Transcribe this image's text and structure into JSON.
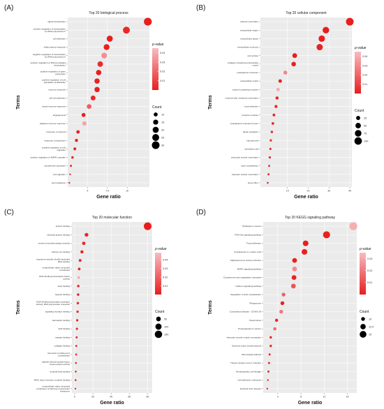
{
  "chart_data": [
    {
      "type": "scatter",
      "panel_label": "(A)",
      "title": "Top 20 biological process",
      "xlabel": "Gene ratio",
      "ylabel": "Terms",
      "xlim": [
        2.5,
        12.8
      ],
      "xticks": [
        5.0,
        7.5,
        10.0
      ],
      "color_legend": {
        "title": "p-value",
        "ticks": [
          0.04,
          0.03,
          0.02,
          0.01
        ],
        "range": [
          0.0,
          0.045
        ]
      },
      "size_legend": {
        "title": "Count",
        "values": [
          10,
          15,
          20,
          25,
          30
        ],
        "range": [
          3,
          31
        ]
      },
      "points": [
        {
          "term": "signal transduction",
          "x": 12.6,
          "count": 31,
          "p": 0.0001
        },
        {
          "term": "positive regulation of transcription by RNA polymerase II",
          "x": 9.9,
          "count": 25,
          "p": 0.003
        },
        {
          "term": "cell adhesion",
          "x": 7.8,
          "count": 20,
          "p": 0.0001
        },
        {
          "term": "inflammatory response",
          "x": 7.4,
          "count": 19,
          "p": 0.0005
        },
        {
          "term": "negative regulation of transcription by RNA polymerase II",
          "x": 7.1,
          "count": 18,
          "p": 0.032
        },
        {
          "term": "positive regulation of DNA-templated transcription",
          "x": 6.6,
          "count": 17,
          "p": 0.004
        },
        {
          "term": "positive regulation of gene expression",
          "x": 6.4,
          "count": 16,
          "p": 0.0003
        },
        {
          "term": "positive regulation of cell population proliferation",
          "x": 6.2,
          "count": 16,
          "p": 0.001
        },
        {
          "term": "immune response",
          "x": 6.2,
          "count": 16,
          "p": 0.0002
        },
        {
          "term": "cell-cell adhesion",
          "x": 5.7,
          "count": 14,
          "p": 0.002
        },
        {
          "term": "innate immune response",
          "x": 5.2,
          "count": 13,
          "p": 0.018
        },
        {
          "term": "angiogenesis",
          "x": 4.5,
          "count": 10,
          "p": 0.0004
        },
        {
          "term": "adaptive immune response",
          "x": 4.6,
          "count": 11,
          "p": 0.038
        },
        {
          "term": "response to hypoxia",
          "x": 3.8,
          "count": 8,
          "p": 0.0002
        },
        {
          "term": "response to bacterium",
          "x": 3.6,
          "count": 7,
          "p": 0.001
        },
        {
          "term": "positive regulation of cell migration",
          "x": 3.4,
          "count": 6,
          "p": 0.0015
        },
        {
          "term": "positive regulation of MAPK cascade",
          "x": 3.1,
          "count": 5,
          "p": 0.002
        },
        {
          "term": "complement activation",
          "x": 2.9,
          "count": 4,
          "p": 0.003
        },
        {
          "term": "cell migration",
          "x": 2.8,
          "count": 3,
          "p": 0.004
        },
        {
          "term": "axon guidance",
          "x": 2.7,
          "count": 3,
          "p": 0.002
        }
      ]
    },
    {
      "type": "scatter",
      "panel_label": "(B)",
      "title": "Top 20 cellular component",
      "xlabel": "Gene ratio",
      "ylabel": "Terms",
      "xlim": [
        -3,
        41
      ],
      "xticks": [
        10,
        20,
        30,
        40
      ],
      "color_legend": {
        "title": "p-value",
        "ticks": [
          0.04,
          0.03,
          0.02,
          0.01
        ],
        "range": [
          0.0,
          0.045
        ]
      },
      "size_legend": {
        "title": "Count",
        "values": [
          25,
          50,
          75,
          100
        ],
        "range": [
          2,
          110
        ]
      },
      "points": [
        {
          "term": "plasma membrane",
          "x": 40.0,
          "count": 105,
          "p": 0.0001
        },
        {
          "term": "extracellular region",
          "x": 28.5,
          "count": 75,
          "p": 0.0003
        },
        {
          "term": "extracellular space",
          "x": 26.5,
          "count": 70,
          "p": 0.0005
        },
        {
          "term": "extracellular exosome",
          "x": 25.5,
          "count": 68,
          "p": 0.001
        },
        {
          "term": "cell surface",
          "x": 13.5,
          "count": 35,
          "p": 0.0002
        },
        {
          "term": "collagen-containing extracellular matrix",
          "x": 13.0,
          "count": 33,
          "p": 0.0008
        },
        {
          "term": "endoplasmic reticulum",
          "x": 9.0,
          "count": 23,
          "p": 0.03
        },
        {
          "term": "extracellular matrix",
          "x": 6.5,
          "count": 17,
          "p": 0.001
        },
        {
          "term": "protein-containing complex",
          "x": 5.5,
          "count": 15,
          "p": 0.04
        },
        {
          "term": "external side of plasma membrane",
          "x": 5.0,
          "count": 13,
          "p": 0.002
        },
        {
          "term": "focal adhesion",
          "x": 4.5,
          "count": 12,
          "p": 0.004
        },
        {
          "term": "receptor complex",
          "x": 3.5,
          "count": 9,
          "p": 0.003
        },
        {
          "term": "endoplasmic reticulum lumen",
          "x": 3.0,
          "count": 8,
          "p": 0.002
        },
        {
          "term": "basal cytoplasm",
          "x": 2.5,
          "count": 7,
          "p": 0.005
        },
        {
          "term": "sarcolemma",
          "x": 2.0,
          "count": 6,
          "p": 0.006
        },
        {
          "term": "membrane raft",
          "x": 1.8,
          "count": 5,
          "p": 0.004
        },
        {
          "term": "endocytic vesicle membrane",
          "x": 1.5,
          "count": 5,
          "p": 0.003
        },
        {
          "term": "actin cytoskeleton",
          "x": 1.2,
          "count": 4,
          "p": 0.007
        },
        {
          "term": "transport vesicle membrane",
          "x": 0.9,
          "count": 4,
          "p": 0.002
        },
        {
          "term": "stress fiber",
          "x": 0.5,
          "count": 3,
          "p": 0.003
        }
      ]
    },
    {
      "type": "scatter",
      "panel_label": "(C)",
      "title": "Top 20 molecular function",
      "xlabel": "Gene ratio",
      "ylabel": "Terms",
      "xlim": [
        -3,
        85
      ],
      "xticks": [
        0,
        20,
        40,
        60,
        80
      ],
      "color_legend": {
        "title": "p-value",
        "ticks": [
          0.04,
          0.03,
          0.02,
          0.01
        ],
        "range": [
          0.0,
          0.048
        ]
      },
      "size_legend": {
        "title": "Count",
        "values": [
          50,
          100,
          150
        ],
        "range": [
          2,
          170
        ]
      },
      "points": [
        {
          "term": "protein binding",
          "x": 80.0,
          "count": 165,
          "p": 0.0001
        },
        {
          "term": "identical protein binding",
          "x": 13.0,
          "count": 28,
          "p": 0.002
        },
        {
          "term": "protein homodimerization activity",
          "x": 10.0,
          "count": 21,
          "p": 0.003
        },
        {
          "term": "calcium ion binding",
          "x": 8.0,
          "count": 17,
          "p": 0.001
        },
        {
          "term": "sequence-specific double-stranded DNA binding",
          "x": 6.0,
          "count": 13,
          "p": 0.004
        },
        {
          "term": "extracellular matrix structural constituent",
          "x": 5.0,
          "count": 11,
          "p": 0.002
        },
        {
          "term": "DNA-binding transcription factor activity",
          "x": 4.5,
          "count": 10,
          "p": 0.042
        },
        {
          "term": "actin binding",
          "x": 4.0,
          "count": 9,
          "p": 0.003
        },
        {
          "term": "heparin binding",
          "x": 3.8,
          "count": 8,
          "p": 0.0006
        },
        {
          "term": "DNA-binding transcription activator activity, RNA polymerase II-specific",
          "x": 3.5,
          "count": 8,
          "p": 0.004
        },
        {
          "term": "signaling receptor binding",
          "x": 3.2,
          "count": 7,
          "p": 0.002
        },
        {
          "term": "calmodulin binding",
          "x": 2.8,
          "count": 6,
          "p": 0.001
        },
        {
          "term": "lipid binding",
          "x": 2.5,
          "count": 6,
          "p": 0.005
        },
        {
          "term": "integrin binding",
          "x": 2.2,
          "count": 5,
          "p": 0.003
        },
        {
          "term": "collagen binding",
          "x": 1.8,
          "count": 4,
          "p": 0.002
        },
        {
          "term": "structural constituent of cytoskeleton",
          "x": 1.6,
          "count": 4,
          "p": 0.006
        },
        {
          "term": "platelet-derived growth factor beta-receptor activity",
          "x": 1.3,
          "count": 3,
          "p": 0.004
        },
        {
          "term": "amyloid-beta binding",
          "x": 1.2,
          "count": 3,
          "p": 0.003
        },
        {
          "term": "MHC class II protein complex binding",
          "x": 1.0,
          "count": 3,
          "p": 0.002
        },
        {
          "term": "extracellular matrix structural constituent conferring compression resistance",
          "x": 0.8,
          "count": 2,
          "p": 0.005
        }
      ]
    },
    {
      "type": "scatter",
      "panel_label": "(D)",
      "title": "Top 20 KEGG signaling pathway",
      "xlabel": "Gene ratio",
      "ylabel": "Terms",
      "xlim": [
        1.5,
        17.6
      ],
      "xticks": [
        4,
        8,
        12,
        16
      ],
      "color_legend": {
        "title": "p-value",
        "ticks": [
          0.03,
          0.02,
          0.01
        ],
        "range": [
          0.0,
          0.035
        ]
      },
      "size_legend": {
        "title": "Count",
        "values": [
          10.0,
          12.5,
          15.0
        ],
        "range": [
          7,
          17
        ]
      },
      "points": [
        {
          "term": "Pathways in cancer",
          "x": 17.0,
          "count": 17,
          "p": 0.032
        },
        {
          "term": "PI3K-Akt signaling pathway",
          "x": 12.4,
          "count": 15.5,
          "p": 0.0005
        },
        {
          "term": "Focal adhesion",
          "x": 8.8,
          "count": 13,
          "p": 0.0002
        },
        {
          "term": "Cytoskeleton in muscle cells",
          "x": 8.6,
          "count": 13,
          "p": 0.0008
        },
        {
          "term": "Staphylococcus aureus infection",
          "x": 6.9,
          "count": 11.5,
          "p": 0.0004
        },
        {
          "term": "MAPK signaling pathway",
          "x": 6.9,
          "count": 11.5,
          "p": 0.024
        },
        {
          "term": "Complement and coagulation cascades",
          "x": 6.8,
          "count": 11.5,
          "p": 0.0006
        },
        {
          "term": "Calcium signaling pathway",
          "x": 6.7,
          "count": 11.5,
          "p": 0.012
        },
        {
          "term": "Regulation of actin cytoskeleton",
          "x": 5.0,
          "count": 10,
          "p": 0.015
        },
        {
          "term": "Phagosome",
          "x": 4.8,
          "count": 10,
          "p": 0.001
        },
        {
          "term": "Coronavirus disease - COVID-19",
          "x": 4.6,
          "count": 10,
          "p": 0.02
        },
        {
          "term": "Tuberculosis",
          "x": 3.8,
          "count": 9,
          "p": 0.002
        },
        {
          "term": "Proteoglycans in cancer",
          "x": 3.5,
          "count": 9,
          "p": 0.016
        },
        {
          "term": "Vascular smooth muscle contraction",
          "x": 2.8,
          "count": 8,
          "p": 0.001
        },
        {
          "term": "Systemic lupus erythematosus",
          "x": 2.8,
          "count": 8,
          "p": 0.002
        },
        {
          "term": "Rheumatoid arthritis",
          "x": 2.6,
          "count": 7.5,
          "p": 0.0015
        },
        {
          "term": "Herpes simplex virus 1 infection",
          "x": 2.5,
          "count": 7.5,
          "p": 0.003
        },
        {
          "term": "Hematopoietic cell lineage",
          "x": 2.4,
          "count": 7.5,
          "p": 0.002
        },
        {
          "term": "Cell adhesion molecules",
          "x": 2.3,
          "count": 7,
          "p": 0.001
        },
        {
          "term": "Alcoholic liver disease",
          "x": 2.2,
          "count": 7,
          "p": 0.0025
        }
      ]
    }
  ]
}
